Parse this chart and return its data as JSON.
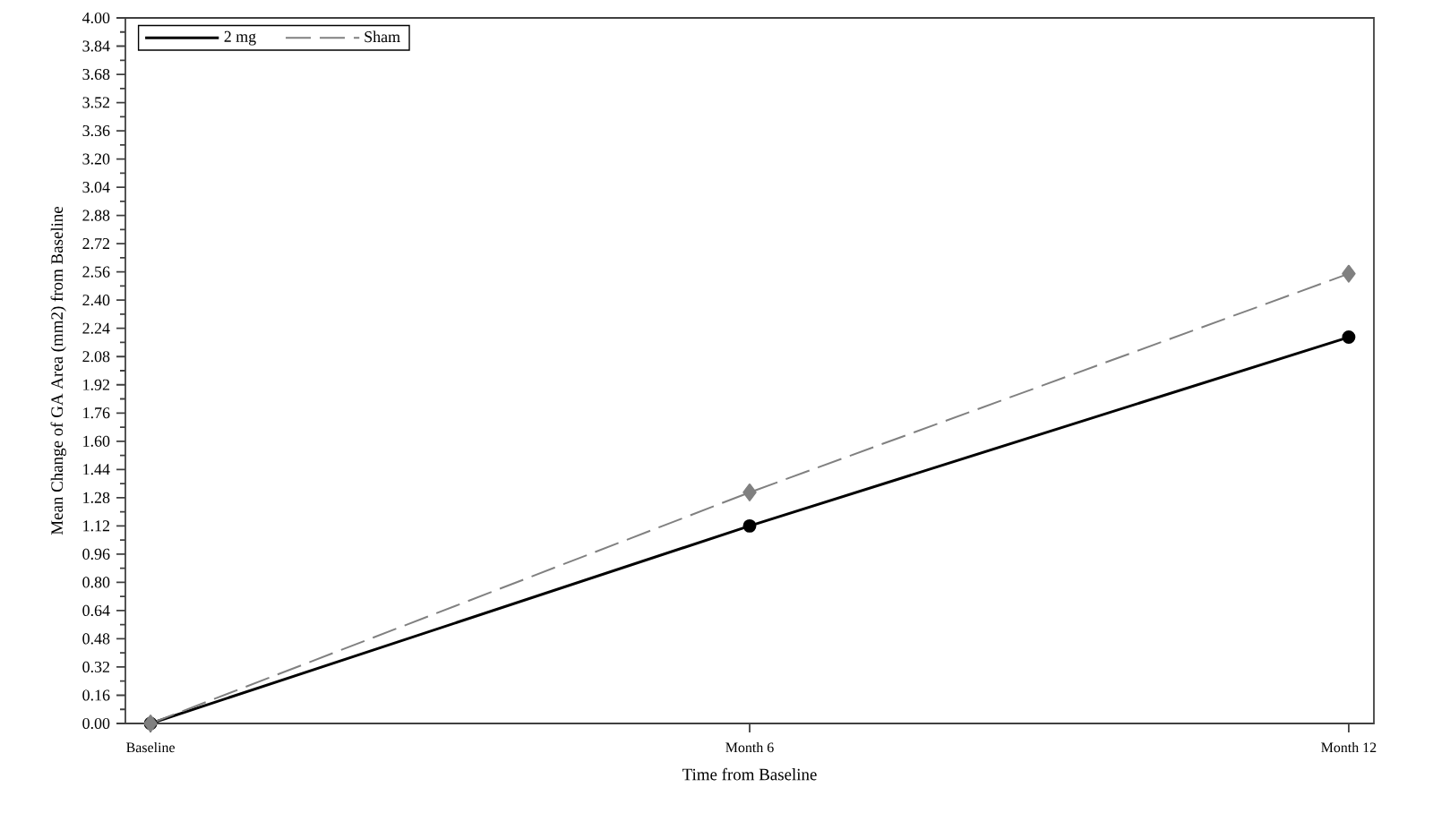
{
  "chart_data": {
    "type": "line",
    "xlabel": "Time from Baseline",
    "ylabel": "Mean Change of GA Area (mm2) from Baseline",
    "categories": [
      "Baseline",
      "Month 6",
      "Month 12"
    ],
    "series": [
      {
        "name": "2 mg",
        "color": "#000000",
        "values": [
          0,
          1.12,
          2.19
        ],
        "marker": "circle",
        "line_style": "solid"
      },
      {
        "name": "Sham",
        "color": "#808080",
        "values": [
          0,
          1.31,
          2.55
        ],
        "marker": "diamond",
        "line_style": "dashed"
      }
    ],
    "ylim": [
      0,
      4
    ],
    "yticks": [
      {
        "value": 0,
        "label": "0.00"
      },
      0.16,
      0.32,
      0.48,
      0.64,
      {
        "value": 0.8,
        "label": "0.80"
      },
      0.96,
      1.12,
      1.28,
      1.44,
      {
        "value": 1.6,
        "label": "1.60"
      },
      1.76,
      1.92,
      2.08,
      2.24,
      {
        "value": 2.4,
        "label": "2.40"
      },
      2.56,
      2.72,
      2.88,
      3.04,
      {
        "value": 3.2,
        "label": "3.20"
      },
      3.36,
      3.52,
      3.68,
      3.84,
      {
        "value": 4,
        "label": "4.00"
      }
    ],
    "legend": "top left"
  }
}
